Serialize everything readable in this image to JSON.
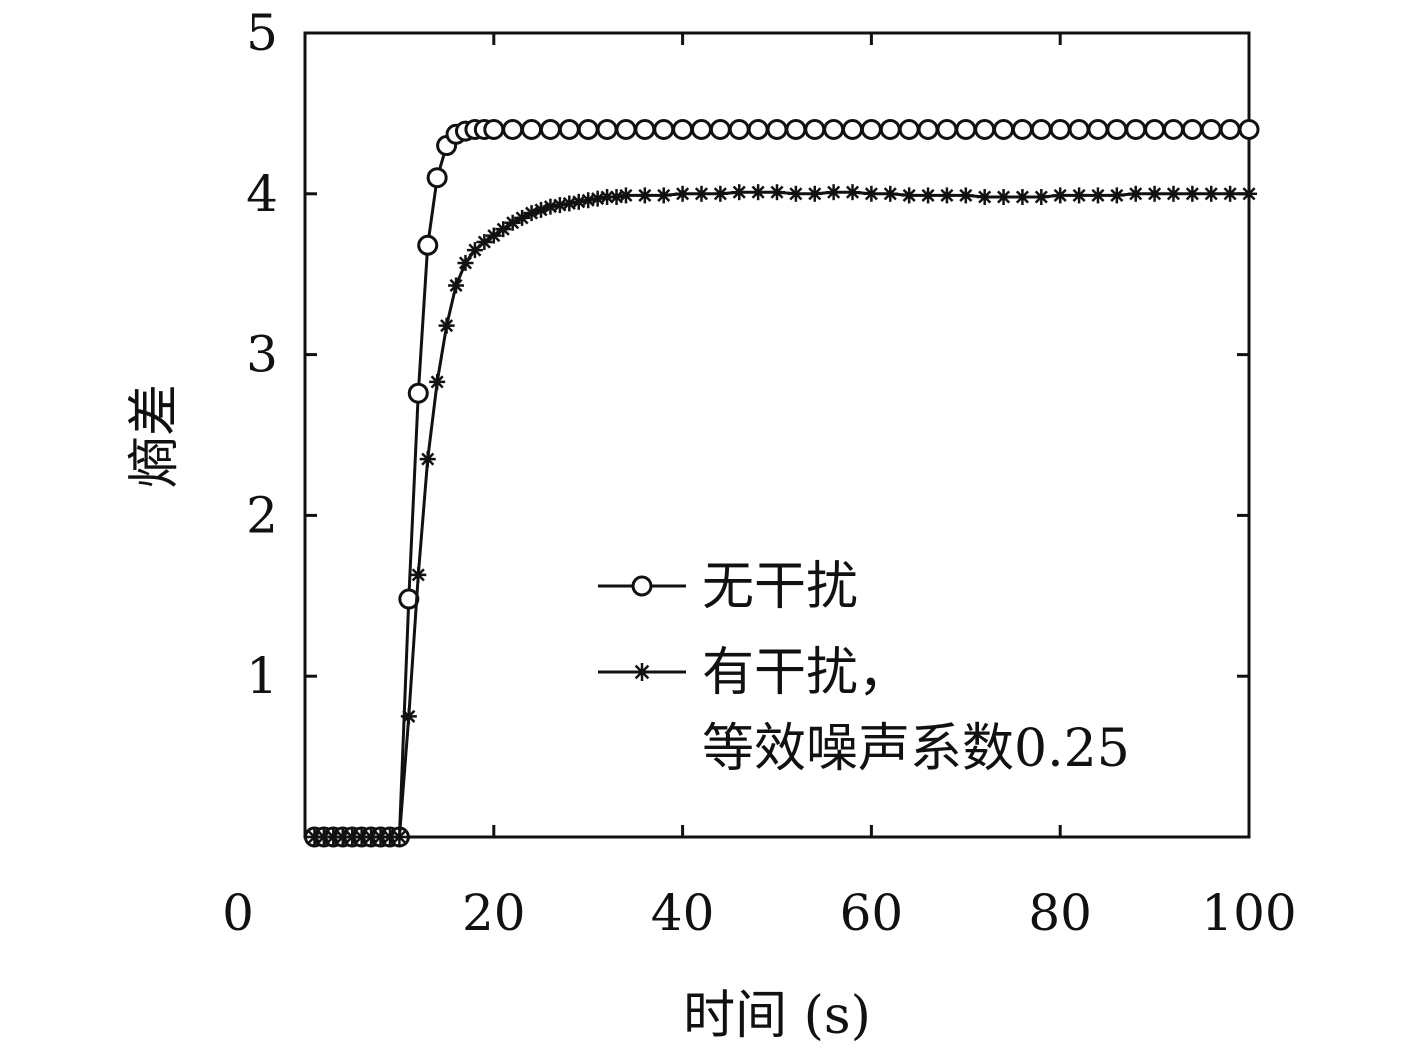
{
  "chart_data": {
    "type": "line",
    "xlabel": "时间 (s)",
    "ylabel": "熵差",
    "xlim": [
      0,
      100
    ],
    "ylim": [
      0,
      5
    ],
    "x_ticks": [
      "0",
      "20",
      "40",
      "60",
      "80",
      "100"
    ],
    "y_ticks": [
      "1",
      "2",
      "3",
      "4",
      "5"
    ],
    "grid": false,
    "legend_position": "lower-right",
    "series": [
      {
        "name": "无干扰",
        "marker": "circle",
        "color": "#111111",
        "x": [
          1,
          2,
          3,
          4,
          5,
          6,
          7,
          8,
          9,
          10,
          11,
          12,
          13,
          14,
          15,
          16,
          17,
          18,
          19,
          20,
          22,
          24,
          26,
          28,
          30,
          32,
          34,
          36,
          38,
          40,
          42,
          44,
          46,
          48,
          50,
          52,
          54,
          56,
          58,
          60,
          62,
          64,
          66,
          68,
          70,
          72,
          74,
          76,
          78,
          80,
          82,
          84,
          86,
          88,
          90,
          92,
          94,
          96,
          98,
          100
        ],
        "y": [
          0,
          0,
          0,
          0,
          0,
          0,
          0,
          0,
          0,
          0,
          1.48,
          2.76,
          3.68,
          4.1,
          4.3,
          4.37,
          4.39,
          4.4,
          4.4,
          4.4,
          4.4,
          4.4,
          4.4,
          4.4,
          4.4,
          4.4,
          4.4,
          4.4,
          4.4,
          4.4,
          4.4,
          4.4,
          4.4,
          4.4,
          4.4,
          4.4,
          4.4,
          4.4,
          4.4,
          4.4,
          4.4,
          4.4,
          4.4,
          4.4,
          4.4,
          4.4,
          4.4,
          4.4,
          4.4,
          4.4,
          4.4,
          4.4,
          4.4,
          4.4,
          4.4,
          4.4,
          4.4,
          4.4,
          4.4,
          4.4
        ]
      },
      {
        "name": "有干扰，",
        "name_line2": "等效噪声系数0.25",
        "marker": "asterisk",
        "color": "#111111",
        "x": [
          1,
          2,
          3,
          4,
          5,
          6,
          7,
          8,
          9,
          10,
          11,
          12,
          13,
          14,
          15,
          16,
          17,
          18,
          19,
          20,
          21,
          22,
          23,
          24,
          25,
          26,
          27,
          28,
          29,
          30,
          31,
          32,
          33,
          34,
          36,
          38,
          40,
          42,
          44,
          46,
          48,
          50,
          52,
          54,
          56,
          58,
          60,
          62,
          64,
          66,
          68,
          70,
          72,
          74,
          76,
          78,
          80,
          82,
          84,
          86,
          88,
          90,
          92,
          94,
          96,
          98,
          100
        ],
        "y": [
          0,
          0,
          0,
          0,
          0,
          0,
          0,
          0,
          0,
          0,
          0.75,
          1.63,
          2.35,
          2.83,
          3.18,
          3.43,
          3.57,
          3.65,
          3.7,
          3.74,
          3.78,
          3.82,
          3.85,
          3.88,
          3.9,
          3.92,
          3.93,
          3.94,
          3.95,
          3.96,
          3.97,
          3.98,
          3.98,
          3.99,
          3.99,
          3.99,
          4.0,
          4.0,
          4.0,
          4.01,
          4.01,
          4.01,
          4.0,
          4.0,
          4.01,
          4.01,
          4.0,
          4.0,
          3.99,
          3.99,
          3.99,
          3.99,
          3.98,
          3.98,
          3.98,
          3.98,
          3.99,
          3.99,
          3.99,
          3.99,
          4.0,
          4.0,
          4.0,
          4.0,
          4.0,
          4.0,
          4.0
        ]
      }
    ]
  }
}
